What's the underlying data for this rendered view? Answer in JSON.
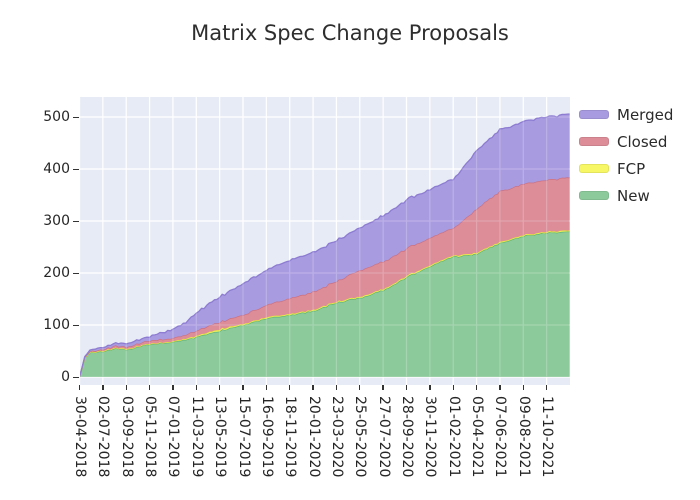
{
  "title": "Matrix Spec Change Proposals",
  "chart_data": {
    "type": "area",
    "stacked": true,
    "title": "Matrix Spec Change Proposals",
    "background_color": "#e7ebf5",
    "gridline_color": "#ffffff",
    "grid": true,
    "text_color": "#262626",
    "legend_position": "right",
    "legend_order": [
      "Merged",
      "Closed",
      "FCP",
      "New"
    ],
    "y_ticks": [
      0,
      100,
      200,
      300,
      400,
      500
    ],
    "ylim": [
      -15,
      538
    ],
    "x_tick_interval_days": 63,
    "xlim_days": [
      0,
      1324
    ],
    "x_tick_labels": [
      "30-04-2018",
      "02-07-2018",
      "03-09-2018",
      "05-11-2018",
      "07-01-2019",
      "11-03-2019",
      "13-05-2019",
      "15-07-2019",
      "16-09-2019",
      "18-11-2019",
      "20-01-2020",
      "23-03-2020",
      "25-05-2020",
      "27-07-2020",
      "28-09-2020",
      "30-11-2020",
      "01-02-2021",
      "05-04-2021",
      "07-06-2021",
      "09-08-2021",
      "11-10-2021"
    ],
    "sample_dates": [
      "30-04-2018",
      "14-05-2018",
      "28-05-2018",
      "02-07-2018",
      "13-08-2018",
      "03-09-2018",
      "05-11-2018",
      "07-01-2019",
      "11-02-2019",
      "11-03-2019",
      "13-05-2019",
      "15-07-2019",
      "16-09-2019",
      "18-11-2019",
      "20-01-2020",
      "23-03-2020",
      "25-05-2020",
      "27-07-2020",
      "28-09-2020",
      "30-11-2020",
      "01-02-2021",
      "05-04-2021",
      "07-06-2021",
      "09-08-2021",
      "11-10-2021",
      "13-12-2021"
    ],
    "sample_days": [
      0,
      14,
      28,
      63,
      105,
      126,
      189,
      252,
      287,
      315,
      378,
      441,
      504,
      567,
      630,
      693,
      756,
      819,
      882,
      945,
      1008,
      1071,
      1134,
      1197,
      1260,
      1322
    ],
    "series": [
      {
        "name": "New",
        "color": "#8cca9b",
        "edge_color": "#5db274",
        "values": [
          0,
          36,
          46,
          50,
          55,
          52,
          63,
          68,
          72,
          76,
          89,
          100,
          113,
          119,
          127,
          143,
          152,
          167,
          192,
          212,
          231,
          236,
          257,
          271,
          277,
          281
        ]
      },
      {
        "name": "FCP",
        "color": "#f7f766",
        "edge_color": "#e3e33e",
        "values": [
          0,
          0,
          1,
          1,
          1,
          1,
          1,
          1,
          2,
          2,
          3,
          2,
          2,
          2,
          2,
          2,
          2,
          2,
          2,
          2,
          2,
          2,
          2,
          2,
          2,
          2
        ]
      },
      {
        "name": "Closed",
        "color": "#dc8d98",
        "edge_color": "#cd6e7c",
        "values": [
          0,
          1,
          2,
          3,
          4,
          4,
          6,
          6,
          8,
          10,
          14,
          18,
          23,
          30,
          35,
          39,
          51,
          53,
          53,
          53,
          53,
          84,
          98,
          98,
          100,
          102
        ]
      },
      {
        "name": "Merged",
        "color": "#a99be0",
        "edge_color": "#8d7cd2",
        "values": [
          0,
          1,
          3,
          4,
          6,
          6,
          8,
          17,
          24,
          34,
          48,
          60,
          67,
          73,
          76,
          78,
          82,
          88,
          93,
          93,
          94,
          112,
          118,
          120,
          121,
          122
        ]
      }
    ]
  }
}
